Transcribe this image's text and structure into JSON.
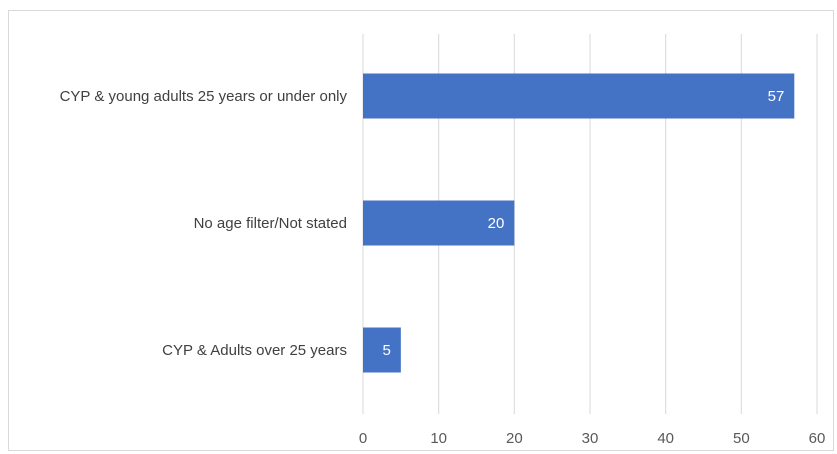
{
  "chart_data": {
    "type": "bar",
    "orientation": "horizontal",
    "categories": [
      "CYP & young adults 25 years or under only",
      "No age filter/Not stated",
      "CYP & Adults over 25 years"
    ],
    "values": [
      57,
      20,
      5
    ],
    "data_labels": [
      "57",
      "20",
      "5"
    ],
    "title": "",
    "xlabel": "",
    "ylabel": "",
    "xlim": [
      0,
      60
    ],
    "x_ticks": [
      0,
      10,
      20,
      30,
      40,
      50,
      60
    ],
    "x_tick_labels": [
      "0",
      "10",
      "20",
      "30",
      "40",
      "50",
      "60"
    ],
    "grid": "vertical",
    "legend": "none",
    "bar_color": "#4472C4"
  }
}
